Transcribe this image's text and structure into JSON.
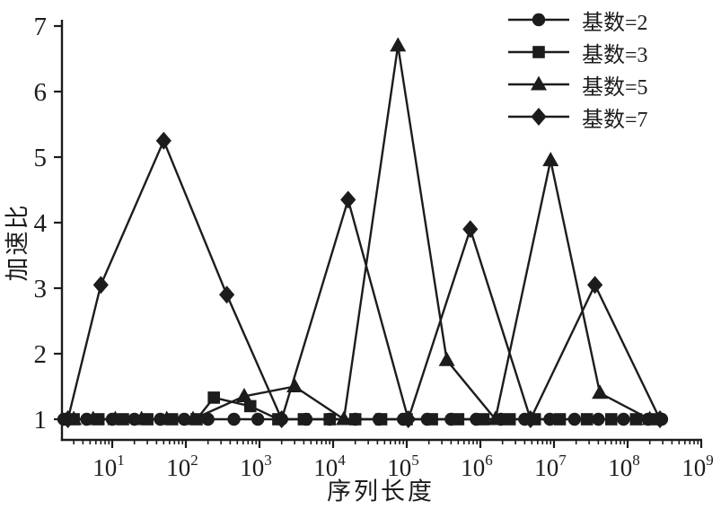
{
  "figure": {
    "background": "#ffffff",
    "ink": "#1c1c1c"
  },
  "chart_data": {
    "type": "line",
    "x_scale": "log",
    "y_scale": "linear",
    "title": "",
    "xlabel": "序列长度",
    "ylabel": "加速比",
    "xlim": [
      2,
      1000000000
    ],
    "ylim": [
      0.7,
      7.1
    ],
    "x_tick_exponents": [
      1,
      2,
      3,
      4,
      5,
      6,
      7,
      8,
      9
    ],
    "x_tick_labels": [
      "10¹",
      "10²",
      "10³",
      "10⁴",
      "10⁵",
      "10⁶",
      "10⁷",
      "10⁸",
      "10⁹"
    ],
    "y_ticks": [
      1,
      2,
      3,
      4,
      5,
      6,
      7
    ],
    "grid": false,
    "legend_position": "top-right",
    "series": [
      {
        "name": "基数=2",
        "marker": "circle",
        "color": "#1c1c1c",
        "points": [
          [
            2.2,
            1
          ],
          [
            4.5,
            1
          ],
          [
            10,
            1
          ],
          [
            20,
            1
          ],
          [
            45,
            1
          ],
          [
            95,
            1
          ],
          [
            200,
            1
          ],
          [
            450,
            1
          ],
          [
            950,
            1
          ],
          [
            2000,
            1
          ],
          [
            4300,
            1
          ],
          [
            9000,
            1
          ],
          [
            20000,
            1
          ],
          [
            42000,
            1
          ],
          [
            90000,
            1
          ],
          [
            190000,
            1
          ],
          [
            400000,
            1
          ],
          [
            880000,
            1
          ],
          [
            1900000,
            1
          ],
          [
            4000000,
            1
          ],
          [
            8800000,
            1
          ],
          [
            19000000,
            1
          ],
          [
            40000000,
            1
          ],
          [
            88000000,
            1
          ],
          [
            190000000,
            1
          ],
          [
            290000000,
            1
          ]
        ]
      },
      {
        "name": "基数=3",
        "marker": "square",
        "color": "#1c1c1c",
        "points": [
          [
            3,
            1
          ],
          [
            6.5,
            1
          ],
          [
            14,
            1
          ],
          [
            30,
            1
          ],
          [
            65,
            1
          ],
          [
            140,
            1
          ],
          [
            240,
            1.33
          ],
          [
            750,
            1.2
          ],
          [
            1800,
            1
          ],
          [
            4000,
            1
          ],
          [
            9000,
            1
          ],
          [
            20000,
            1
          ],
          [
            45000,
            1
          ],
          [
            100000,
            1
          ],
          [
            220000,
            1
          ],
          [
            500000,
            1
          ],
          [
            1100000,
            1
          ],
          [
            2500000,
            1
          ],
          [
            5500000,
            1
          ],
          [
            12000000,
            1
          ],
          [
            28000000,
            1
          ],
          [
            60000000,
            1
          ],
          [
            130000000,
            1
          ],
          [
            250000000,
            1
          ]
        ]
      },
      {
        "name": "基数=5",
        "marker": "triangle",
        "color": "#1c1c1c",
        "points": [
          [
            3,
            1
          ],
          [
            5.5,
            1
          ],
          [
            11,
            1
          ],
          [
            25,
            1
          ],
          [
            55,
            1
          ],
          [
            125,
            1
          ],
          [
            620,
            1.35
          ],
          [
            3000,
            1.5
          ],
          [
            14000,
            1
          ],
          [
            76000,
            6.7
          ],
          [
            350000,
            1.9
          ],
          [
            1600000,
            1
          ],
          [
            9000000,
            4.95
          ],
          [
            42000000,
            1.4
          ],
          [
            200000000,
            1
          ]
        ]
      },
      {
        "name": "基数=7",
        "marker": "diamond",
        "color": "#1c1c1c",
        "points": [
          [
            2.5,
            1
          ],
          [
            7,
            3.05
          ],
          [
            50,
            5.25
          ],
          [
            360,
            2.9
          ],
          [
            2000,
            1
          ],
          [
            16000,
            4.35
          ],
          [
            105000,
            1
          ],
          [
            730000,
            3.9
          ],
          [
            4800000,
            1
          ],
          [
            36000000,
            3.05
          ],
          [
            275000000,
            1
          ]
        ]
      }
    ]
  }
}
